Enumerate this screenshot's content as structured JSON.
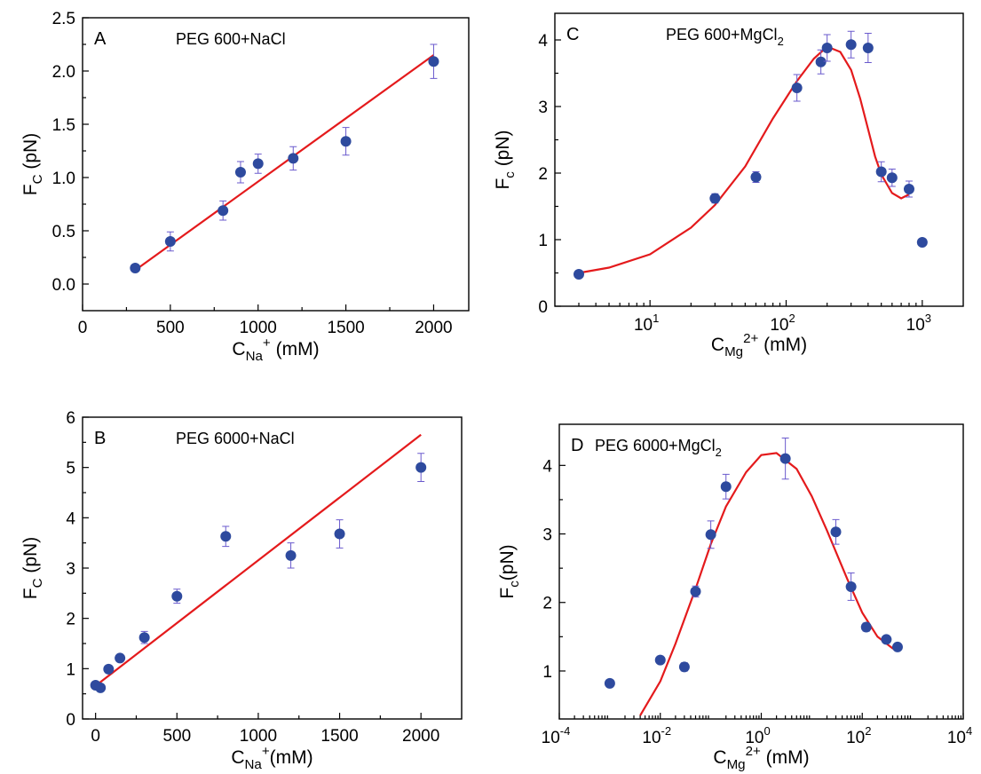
{
  "chart_data": [
    {
      "panel": "A",
      "type": "scatter",
      "title": "PEG 600+NaCl",
      "xlabel": {
        "main": "C",
        "sub": "Na",
        "sup": "+",
        "tail": " (mM)"
      },
      "ylabel": {
        "main": "F",
        "sub": "C",
        "tail": " (pN)"
      },
      "xscale": "linear",
      "xlim": [
        0,
        2200
      ],
      "ylim": [
        -0.25,
        2.5
      ],
      "xticks": [
        0,
        500,
        1000,
        1500,
        2000
      ],
      "xtick_labels": [
        "0",
        "500",
        "1000",
        "1500",
        "2000"
      ],
      "yticks": [
        0.0,
        0.5,
        1.0,
        1.5,
        2.0,
        2.5
      ],
      "ytick_labels": [
        "0.0",
        "0.5",
        "1.0",
        "1.5",
        "2.0",
        "2.5"
      ],
      "points": [
        {
          "x": 300,
          "y": 0.15,
          "err": 0.0
        },
        {
          "x": 500,
          "y": 0.4,
          "err": 0.09
        },
        {
          "x": 800,
          "y": 0.69,
          "err": 0.09
        },
        {
          "x": 900,
          "y": 1.05,
          "err": 0.1
        },
        {
          "x": 1000,
          "y": 1.13,
          "err": 0.09
        },
        {
          "x": 1200,
          "y": 1.18,
          "err": 0.11
        },
        {
          "x": 1500,
          "y": 1.34,
          "err": 0.13
        },
        {
          "x": 2000,
          "y": 2.09,
          "err": 0.16
        }
      ],
      "fit": [
        [
          300,
          0.13
        ],
        [
          2000,
          2.15
        ]
      ]
    },
    {
      "panel": "B",
      "type": "scatter",
      "title": "PEG 6000+NaCl",
      "xlabel": {
        "main": "C",
        "sub": "Na",
        "sup": "+",
        "tail": "(mM)"
      },
      "ylabel": {
        "main": "F",
        "sub": "C",
        "tail": " (pN)"
      },
      "xscale": "linear",
      "xlim": [
        -80,
        2250
      ],
      "ylim": [
        0,
        6
      ],
      "xticks": [
        0,
        500,
        1000,
        1500,
        2000
      ],
      "xtick_labels": [
        "0",
        "500",
        "1000",
        "1500",
        "2000"
      ],
      "yticks": [
        0,
        1,
        2,
        3,
        4,
        5,
        6
      ],
      "ytick_labels": [
        "0",
        "1",
        "2",
        "3",
        "4",
        "5",
        "6"
      ],
      "points": [
        {
          "x": 0,
          "y": 0.67,
          "err": 0.0
        },
        {
          "x": 30,
          "y": 0.62,
          "err": 0.0
        },
        {
          "x": 80,
          "y": 0.99,
          "err": 0.0
        },
        {
          "x": 150,
          "y": 1.21,
          "err": 0.0
        },
        {
          "x": 300,
          "y": 1.62,
          "err": 0.12
        },
        {
          "x": 500,
          "y": 2.44,
          "err": 0.14
        },
        {
          "x": 800,
          "y": 3.63,
          "err": 0.2
        },
        {
          "x": 1200,
          "y": 3.25,
          "err": 0.25
        },
        {
          "x": 1500,
          "y": 3.68,
          "err": 0.28
        },
        {
          "x": 2000,
          "y": 5.0,
          "err": 0.28
        }
      ],
      "fit": [
        [
          0,
          0.66
        ],
        [
          2000,
          5.65
        ]
      ]
    },
    {
      "panel": "C",
      "type": "scatter",
      "title": {
        "main": "PEG 600+MgCl",
        "sub": "2"
      },
      "xlabel": {
        "main": "C",
        "sub": "Mg",
        "sup": "2+",
        "tail": " (mM)"
      },
      "ylabel": {
        "main": "F",
        "sub": "c",
        "tail": " (pN)"
      },
      "xscale": "log",
      "xlim": [
        2,
        2000
      ],
      "ylim": [
        0,
        4.4
      ],
      "xticks": [
        10,
        100,
        1000
      ],
      "xtick_labels": [
        {
          "base": "10",
          "exp": "1"
        },
        {
          "base": "10",
          "exp": "2"
        },
        {
          "base": "10",
          "exp": "3"
        }
      ],
      "yticks": [
        0,
        1,
        2,
        3,
        4
      ],
      "ytick_labels": [
        "0",
        "1",
        "2",
        "3",
        "4"
      ],
      "points": [
        {
          "x": 3,
          "y": 0.48,
          "err": 0.0
        },
        {
          "x": 30,
          "y": 1.62,
          "err": 0.07
        },
        {
          "x": 60,
          "y": 1.94,
          "err": 0.08
        },
        {
          "x": 120,
          "y": 3.28,
          "err": 0.2
        },
        {
          "x": 180,
          "y": 3.67,
          "err": 0.18
        },
        {
          "x": 200,
          "y": 3.88,
          "err": 0.2
        },
        {
          "x": 300,
          "y": 3.93,
          "err": 0.2
        },
        {
          "x": 400,
          "y": 3.88,
          "err": 0.22
        },
        {
          "x": 500,
          "y": 2.02,
          "err": 0.15
        },
        {
          "x": 600,
          "y": 1.93,
          "err": 0.13
        },
        {
          "x": 800,
          "y": 1.76,
          "err": 0.12
        },
        {
          "x": 1000,
          "y": 0.96,
          "err": 0.0
        }
      ],
      "fit": [
        [
          3,
          0.5
        ],
        [
          5,
          0.58
        ],
        [
          10,
          0.78
        ],
        [
          20,
          1.18
        ],
        [
          30,
          1.52
        ],
        [
          50,
          2.1
        ],
        [
          80,
          2.82
        ],
        [
          120,
          3.38
        ],
        [
          160,
          3.72
        ],
        [
          200,
          3.9
        ],
        [
          250,
          3.82
        ],
        [
          300,
          3.55
        ],
        [
          350,
          3.12
        ],
        [
          400,
          2.66
        ],
        [
          450,
          2.25
        ],
        [
          500,
          1.98
        ],
        [
          600,
          1.7
        ],
        [
          700,
          1.62
        ],
        [
          800,
          1.68
        ]
      ]
    },
    {
      "panel": "D",
      "type": "scatter",
      "title": {
        "main": "PEG 6000+MgCl",
        "sub": "2"
      },
      "xlabel": {
        "main": "C",
        "sub": "Mg",
        "sup": "2+",
        "tail": " (mM)"
      },
      "ylabel": {
        "main": "F",
        "sub": "c",
        "tail": "(pN)"
      },
      "xscale": "log",
      "xlim": [
        0.0001,
        10000
      ],
      "ylim": [
        0.3,
        4.6
      ],
      "xticks": [
        0.0001,
        0.01,
        1,
        100,
        10000
      ],
      "xtick_labels": [
        {
          "base": "10",
          "exp": "-4"
        },
        {
          "base": "10",
          "exp": "-2"
        },
        {
          "base": "10",
          "exp": "0"
        },
        {
          "base": "10",
          "exp": "2"
        },
        {
          "base": "10",
          "exp": "4"
        }
      ],
      "yticks": [
        1,
        2,
        3,
        4
      ],
      "ytick_labels": [
        "1",
        "2",
        "3",
        "4"
      ],
      "points": [
        {
          "x": 0.001,
          "y": 0.82,
          "err": 0.0
        },
        {
          "x": 0.01,
          "y": 1.16,
          "err": 0.0
        },
        {
          "x": 0.03,
          "y": 1.06,
          "err": 0.06
        },
        {
          "x": 0.05,
          "y": 2.16,
          "err": 0.08
        },
        {
          "x": 0.1,
          "y": 2.99,
          "err": 0.2
        },
        {
          "x": 0.2,
          "y": 3.69,
          "err": 0.18
        },
        {
          "x": 3,
          "y": 4.1,
          "err": 0.3
        },
        {
          "x": 30,
          "y": 3.03,
          "err": 0.18
        },
        {
          "x": 60,
          "y": 2.23,
          "err": 0.2
        },
        {
          "x": 120,
          "y": 1.64,
          "err": 0.06
        },
        {
          "x": 300,
          "y": 1.46,
          "err": 0.05
        },
        {
          "x": 500,
          "y": 1.35,
          "err": 0.05
        }
      ],
      "fit": [
        [
          0.004,
          0.35
        ],
        [
          0.01,
          0.85
        ],
        [
          0.02,
          1.4
        ],
        [
          0.05,
          2.2
        ],
        [
          0.1,
          2.85
        ],
        [
          0.2,
          3.4
        ],
        [
          0.5,
          3.9
        ],
        [
          1,
          4.15
        ],
        [
          2,
          4.18
        ],
        [
          5,
          3.95
        ],
        [
          10,
          3.55
        ],
        [
          20,
          3.05
        ],
        [
          50,
          2.35
        ],
        [
          100,
          1.85
        ],
        [
          200,
          1.5
        ],
        [
          400,
          1.33
        ],
        [
          500,
          1.31
        ]
      ]
    }
  ]
}
